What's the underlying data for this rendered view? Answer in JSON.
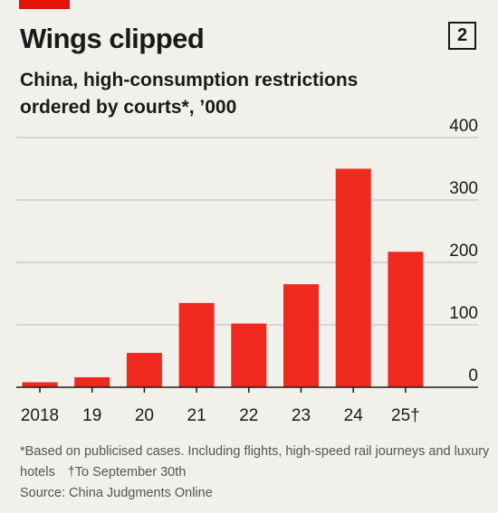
{
  "header": {
    "title": "Wings clipped",
    "chart_number": "2",
    "subtitle": "China, high-consumption restrictions ordered by courts*, ’000"
  },
  "footer": {
    "note": "*Based on publicised cases. Including flights, high-speed rail journeys and luxury hotels",
    "dagger_note": "†To September 30th",
    "source": "Source: China Judgments Online"
  },
  "colors": {
    "accent": "#e3120b",
    "bar": "#f0291e",
    "grid": "#b8b8b8",
    "axis": "#1a1a1a",
    "background": "#f2f0eb"
  },
  "chart_data": {
    "type": "bar",
    "title": "Wings clipped",
    "subtitle": "China, high-consumption restrictions ordered by courts*, ’000",
    "categories": [
      "2018",
      "19",
      "20",
      "21",
      "22",
      "23",
      "24",
      "25†"
    ],
    "values": [
      8,
      16,
      55,
      135,
      102,
      165,
      350,
      217
    ],
    "ylim": [
      0,
      400
    ],
    "yticks": [
      0,
      100,
      200,
      300,
      400
    ],
    "y_axis_position": "right",
    "grid": true,
    "legend": "none"
  }
}
